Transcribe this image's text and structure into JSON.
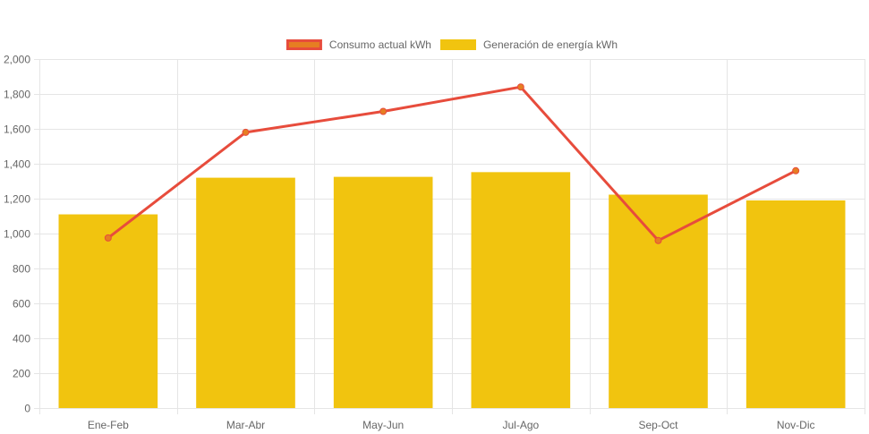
{
  "chart_data": {
    "type": "bar",
    "categories": [
      "Ene-Feb",
      "Mar-Abr",
      "May-Jun",
      "Jul-Ago",
      "Sep-Oct",
      "Nov-Dic"
    ],
    "series": [
      {
        "name": "Consumo actual kWh",
        "type": "line",
        "values": [
          975,
          1580,
          1700,
          1840,
          960,
          1360
        ],
        "color": "#e74c3c",
        "point_color": "#e67e22"
      },
      {
        "name": "Generación de energía kWh",
        "type": "bar",
        "values": [
          1110,
          1320,
          1325,
          1352,
          1223,
          1190
        ],
        "color": "#f1c40f"
      }
    ],
    "ylim": [
      0,
      2000
    ],
    "yticks": [
      0,
      200,
      400,
      600,
      800,
      1000,
      1200,
      1400,
      1600,
      1800,
      2000
    ],
    "ytick_labels": [
      "0",
      "200",
      "400",
      "600",
      "800",
      "1,000",
      "1,200",
      "1,400",
      "1,600",
      "1,800",
      "2,000"
    ],
    "grid": true,
    "legend_position": "top-center",
    "grid_color": "#e5e5e5"
  }
}
